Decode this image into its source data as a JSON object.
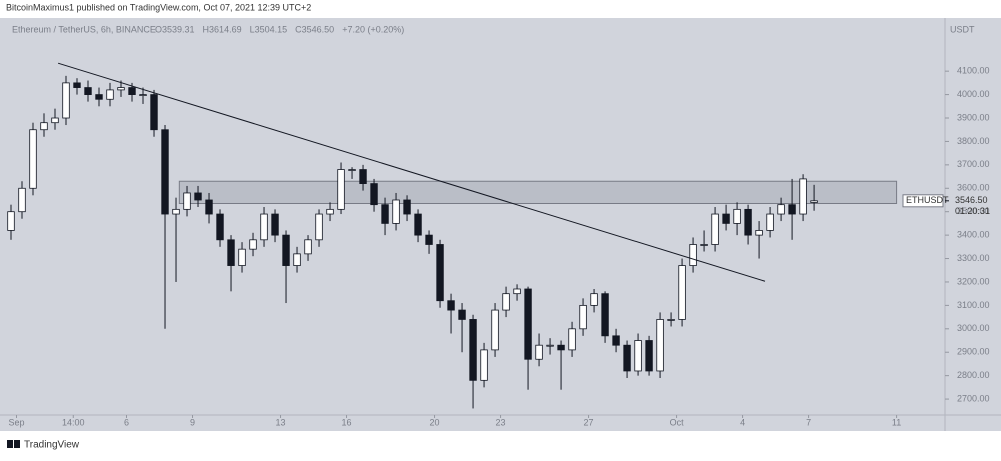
{
  "header": {
    "published": "BitcoinMaximus1 published on TradingView.com, Oct 07, 2021 12:39 UTC+2",
    "symbol": "Ethereum / TetherUS, 6h, BINANCE",
    "ohlc": [
      "O3539.31",
      "H3614.69",
      "L3504.15",
      "C3546.50",
      "+7.20 (+0.20%)"
    ],
    "currency": "USDT"
  },
  "footer": {
    "brand": "TradingView"
  },
  "chart_data": {
    "type": "candlestick",
    "x": [
      0.75,
      1.25,
      1.75,
      2.25,
      2.75,
      3.25,
      3.75,
      4.25,
      4.75,
      5.25,
      5.75,
      6.25,
      6.75,
      7.25,
      7.75,
      8.25,
      8.75,
      9.25,
      9.75,
      10.25,
      10.75,
      11.25,
      11.75,
      12.25,
      12.75,
      13.25,
      13.75,
      14.25,
      14.75,
      15.25,
      15.75,
      16.25,
      16.75,
      17.25,
      17.75,
      18.25,
      18.75,
      19.25,
      19.75,
      20.25,
      20.75,
      21.25,
      21.75,
      22.25,
      22.75,
      23.25,
      23.75,
      24.25,
      24.75,
      25.25,
      25.75,
      26.25,
      26.75,
      27.25,
      27.75,
      28.25,
      28.75,
      29.25,
      29.75,
      30.25,
      30.75,
      31.25,
      31.75,
      32.25,
      32.75,
      33.25,
      33.75,
      34.25,
      34.75,
      35.25,
      35.75,
      36.25,
      36.75,
      37.25
    ],
    "open": [
      3420,
      3500,
      3600,
      3850,
      3880,
      3900,
      4050,
      4030,
      4000,
      3980,
      4020,
      4030,
      4000,
      4000,
      3850,
      3490,
      3510,
      3580,
      3550,
      3490,
      3380,
      3270,
      3340,
      3380,
      3490,
      3400,
      3270,
      3320,
      3380,
      3490,
      3510,
      3680,
      3680,
      3620,
      3530,
      3450,
      3550,
      3490,
      3400,
      3360,
      3120,
      3080,
      3040,
      2780,
      2910,
      3080,
      3150,
      3170,
      2870,
      2930,
      2930,
      2910,
      3000,
      3100,
      3150,
      2970,
      2930,
      2820,
      2950,
      2820,
      3040,
      3040,
      3270,
      3360,
      3360,
      3490,
      3450,
      3510,
      3400,
      3420,
      3490,
      3530,
      3490,
      3539.31
    ],
    "high": [
      3530,
      3630,
      3880,
      3920,
      3940,
      4080,
      4070,
      4060,
      4030,
      4050,
      4060,
      4050,
      4030,
      4020,
      3870,
      3560,
      3610,
      3610,
      3580,
      3510,
      3400,
      3370,
      3410,
      3520,
      3510,
      3420,
      3350,
      3400,
      3510,
      3540,
      3710,
      3690,
      3700,
      3640,
      3560,
      3580,
      3570,
      3510,
      3420,
      3380,
      3150,
      3110,
      3060,
      2940,
      3110,
      3180,
      3190,
      3180,
      2980,
      2960,
      2950,
      3030,
      3130,
      3170,
      3160,
      3000,
      2950,
      2980,
      2970,
      3070,
      3070,
      3300,
      3390,
      3420,
      3520,
      3530,
      3540,
      3530,
      3460,
      3520,
      3560,
      3640,
      3660,
      3614.69
    ],
    "low": [
      3380,
      3470,
      3570,
      3820,
      3850,
      3870,
      4000,
      3970,
      3950,
      3950,
      3990,
      3970,
      3960,
      3820,
      3000,
      3200,
      3480,
      3520,
      3450,
      3350,
      3160,
      3240,
      3310,
      3350,
      3370,
      3110,
      3240,
      3290,
      3350,
      3460,
      3490,
      3640,
      3590,
      3500,
      3400,
      3420,
      3460,
      3370,
      3320,
      3090,
      2980,
      2900,
      2660,
      2750,
      2880,
      3050,
      3120,
      2740,
      2840,
      2890,
      2740,
      2880,
      2970,
      3070,
      2940,
      2900,
      2790,
      2800,
      2800,
      2790,
      3010,
      3010,
      3240,
      3330,
      3330,
      3420,
      3400,
      3360,
      3300,
      3390,
      3460,
      3380,
      3460,
      3504.15
    ],
    "close": [
      3500,
      3600,
      3850,
      3880,
      3900,
      4050,
      4030,
      4000,
      3980,
      4020,
      4030,
      4000,
      4000,
      3850,
      3490,
      3510,
      3580,
      3550,
      3490,
      3380,
      3270,
      3340,
      3380,
      3490,
      3400,
      3270,
      3320,
      3380,
      3490,
      3510,
      3680,
      3680,
      3620,
      3530,
      3450,
      3550,
      3490,
      3400,
      3360,
      3120,
      3080,
      3040,
      2780,
      2910,
      3080,
      3150,
      3170,
      2870,
      2930,
      2930,
      2910,
      3000,
      3100,
      3150,
      2970,
      2930,
      2820,
      2950,
      2820,
      3040,
      3040,
      3270,
      3360,
      3360,
      3490,
      3450,
      3510,
      3400,
      3420,
      3490,
      3530,
      3490,
      3640,
      3546.5
    ],
    "up_color": "#ffffff",
    "down_color": "#131722",
    "outline_color": "#131722",
    "xlim": [
      0.25,
      43.2
    ],
    "xticks": [
      {
        "value": 1,
        "label": "Sep"
      },
      {
        "value": 3.58,
        "label": "14:00"
      },
      6,
      9,
      13,
      16,
      20,
      23,
      27,
      {
        "value": 31,
        "label": "Oct"
      },
      {
        "value": 34,
        "label": "4"
      },
      {
        "value": 37,
        "label": "7"
      },
      {
        "value": 41,
        "label": "11"
      }
    ],
    "ylim": [
      2632,
      4327
    ],
    "yticks": [
      {
        "value": 2700,
        "label": "2700.00"
      },
      {
        "value": 2800,
        "label": "2800.00"
      },
      {
        "value": 2900,
        "label": "2900.00"
      },
      {
        "value": 3000,
        "label": "3000.00"
      },
      {
        "value": 3100,
        "label": "3100.00"
      },
      {
        "value": 3200,
        "label": "3200.00"
      },
      {
        "value": 3300,
        "label": "3300.00"
      },
      {
        "value": 3400,
        "label": "3400.00"
      },
      {
        "value": 3500,
        "label": "3500.00"
      },
      {
        "value": 3600,
        "label": "3600.00"
      },
      {
        "value": 3700,
        "label": "3700.00"
      },
      {
        "value": 3800,
        "label": "3800.00"
      },
      {
        "value": 3900,
        "label": "3900.00"
      },
      {
        "value": 4000,
        "label": "4000.00"
      },
      {
        "value": 4100,
        "label": "4100.00"
      }
    ],
    "zone": {
      "x": [
        8.4,
        41
      ],
      "y": [
        3535,
        3630
      ]
    },
    "trendline": {
      "x": [
        2.89,
        35.02
      ],
      "y": [
        4134,
        3203
      ]
    },
    "last_price": {
      "symbol": "ETHUSDT",
      "value": 3546.5,
      "label": "3546.50",
      "countdown": "01:20:31"
    }
  }
}
